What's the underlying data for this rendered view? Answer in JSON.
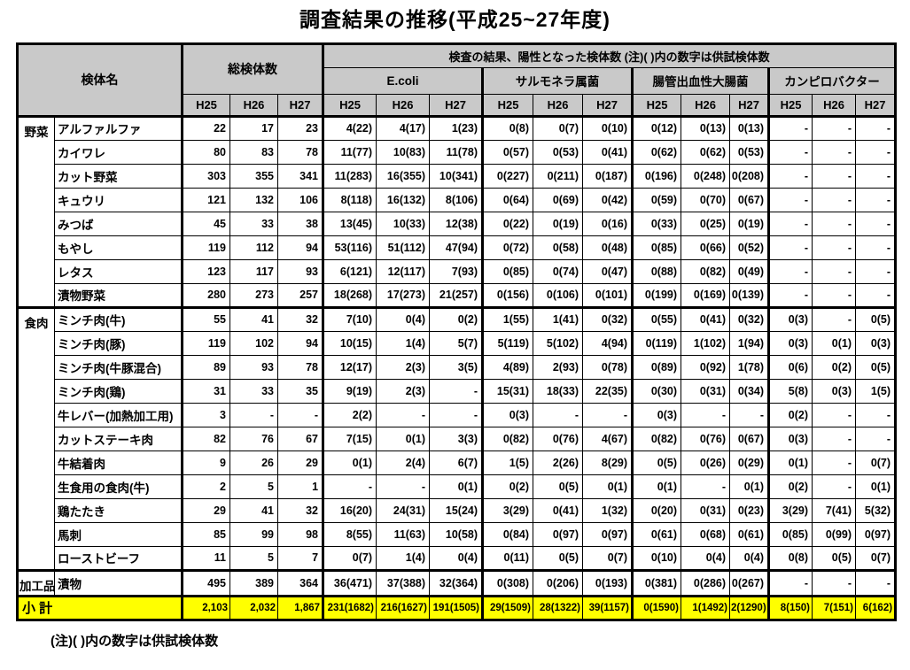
{
  "title": "調査結果の推移(平成25~27年度)",
  "note": "(注)( )内の数字は供試検体数",
  "colors": {
    "header_bg": "#c9c9c9",
    "subtotal_bg": "#ffff00",
    "border": "#000000"
  },
  "table": {
    "header": {
      "specimen_label": "検体名",
      "total_label": "総検体数",
      "positive_label": "検査の結果、陽性となった検体数 (注)( )内の数字は供試検体数",
      "pathogen_groups": [
        "E.coli",
        "サルモネラ属菌",
        "腸管出血性大腸菌",
        "カンピロバクター"
      ],
      "years": [
        "H25",
        "H26",
        "H27"
      ]
    },
    "groups": [
      {
        "name": "野菜",
        "rows": [
          {
            "name": "アルファルファ",
            "values": [
              "22",
              "17",
              "23",
              "4(22)",
              "4(17)",
              "1(23)",
              "0(8)",
              "0(7)",
              "0(10)",
              "0(12)",
              "0(13)",
              "0(13)",
              "-",
              "-",
              "-"
            ]
          },
          {
            "name": "カイワレ",
            "values": [
              "80",
              "83",
              "78",
              "11(77)",
              "10(83)",
              "11(78)",
              "0(57)",
              "0(53)",
              "0(41)",
              "0(62)",
              "0(62)",
              "0(53)",
              "-",
              "-",
              "-"
            ]
          },
          {
            "name": "カット野菜",
            "values": [
              "303",
              "355",
              "341",
              "11(283)",
              "16(355)",
              "10(341)",
              "0(227)",
              "0(211)",
              "0(187)",
              "0(196)",
              "0(248)",
              "0(208)",
              "-",
              "-",
              "-"
            ]
          },
          {
            "name": "キュウリ",
            "values": [
              "121",
              "132",
              "106",
              "8(118)",
              "16(132)",
              "8(106)",
              "0(64)",
              "0(69)",
              "0(42)",
              "0(59)",
              "0(70)",
              "0(67)",
              "-",
              "-",
              "-"
            ]
          },
          {
            "name": "みつば",
            "values": [
              "45",
              "33",
              "38",
              "13(45)",
              "10(33)",
              "12(38)",
              "0(22)",
              "0(19)",
              "0(16)",
              "0(33)",
              "0(25)",
              "0(19)",
              "-",
              "-",
              "-"
            ]
          },
          {
            "name": "もやし",
            "values": [
              "119",
              "112",
              "94",
              "53(116)",
              "51(112)",
              "47(94)",
              "0(72)",
              "0(58)",
              "0(48)",
              "0(85)",
              "0(66)",
              "0(52)",
              "-",
              "-",
              "-"
            ]
          },
          {
            "name": "レタス",
            "values": [
              "123",
              "117",
              "93",
              "6(121)",
              "12(117)",
              "7(93)",
              "0(85)",
              "0(74)",
              "0(47)",
              "0(88)",
              "0(82)",
              "0(49)",
              "-",
              "-",
              "-"
            ]
          },
          {
            "name": "漬物野菜",
            "values": [
              "280",
              "273",
              "257",
              "18(268)",
              "17(273)",
              "21(257)",
              "0(156)",
              "0(106)",
              "0(101)",
              "0(199)",
              "0(169)",
              "0(139)",
              "-",
              "-",
              "-"
            ]
          }
        ]
      },
      {
        "name": "食肉",
        "rows": [
          {
            "name": "ミンチ肉(牛)",
            "values": [
              "55",
              "41",
              "32",
              "7(10)",
              "0(4)",
              "0(2)",
              "1(55)",
              "1(41)",
              "0(32)",
              "0(55)",
              "0(41)",
              "0(32)",
              "0(3)",
              "-",
              "0(5)"
            ]
          },
          {
            "name": "ミンチ肉(豚)",
            "values": [
              "119",
              "102",
              "94",
              "10(15)",
              "1(4)",
              "5(7)",
              "5(119)",
              "5(102)",
              "4(94)",
              "0(119)",
              "1(102)",
              "1(94)",
              "0(3)",
              "0(1)",
              "0(3)"
            ]
          },
          {
            "name": "ミンチ肉(牛豚混合)",
            "values": [
              "89",
              "93",
              "78",
              "12(17)",
              "2(3)",
              "3(5)",
              "4(89)",
              "2(93)",
              "0(78)",
              "0(89)",
              "0(92)",
              "1(78)",
              "0(6)",
              "0(2)",
              "0(5)"
            ]
          },
          {
            "name": "ミンチ肉(鶏)",
            "values": [
              "31",
              "33",
              "35",
              "9(19)",
              "2(3)",
              "-",
              "15(31)",
              "18(33)",
              "22(35)",
              "0(30)",
              "0(31)",
              "0(34)",
              "5(8)",
              "0(3)",
              "1(5)"
            ]
          },
          {
            "name": "牛レバー(加熱加工用)",
            "values": [
              "3",
              "-",
              "-",
              "2(2)",
              "-",
              "-",
              "0(3)",
              "-",
              "-",
              "0(3)",
              "-",
              "-",
              "0(2)",
              "-",
              "-"
            ]
          },
          {
            "name": "カットステーキ肉",
            "values": [
              "82",
              "76",
              "67",
              "7(15)",
              "0(1)",
              "3(3)",
              "0(82)",
              "0(76)",
              "4(67)",
              "0(82)",
              "0(76)",
              "0(67)",
              "0(3)",
              "-",
              "-"
            ]
          },
          {
            "name": "牛結着肉",
            "values": [
              "9",
              "26",
              "29",
              "0(1)",
              "2(4)",
              "6(7)",
              "1(5)",
              "2(26)",
              "8(29)",
              "0(5)",
              "0(26)",
              "0(29)",
              "0(1)",
              "-",
              "0(7)"
            ]
          },
          {
            "name": "生食用の食肉(牛)",
            "values": [
              "2",
              "5",
              "1",
              "-",
              "-",
              "0(1)",
              "0(2)",
              "0(5)",
              "0(1)",
              "0(1)",
              "-",
              "0(1)",
              "0(2)",
              "-",
              "0(1)"
            ]
          },
          {
            "name": "鶏たたき",
            "values": [
              "29",
              "41",
              "32",
              "16(20)",
              "24(31)",
              "15(24)",
              "3(29)",
              "0(41)",
              "1(32)",
              "0(20)",
              "0(31)",
              "0(23)",
              "3(29)",
              "7(41)",
              "5(32)"
            ]
          },
          {
            "name": "馬刺",
            "values": [
              "85",
              "99",
              "98",
              "8(55)",
              "11(63)",
              "10(58)",
              "0(84)",
              "0(97)",
              "0(97)",
              "0(61)",
              "0(68)",
              "0(61)",
              "0(85)",
              "0(99)",
              "0(97)"
            ]
          },
          {
            "name": "ローストビーフ",
            "values": [
              "11",
              "5",
              "7",
              "0(7)",
              "1(4)",
              "0(4)",
              "0(11)",
              "0(5)",
              "0(7)",
              "0(10)",
              "0(4)",
              "0(4)",
              "0(8)",
              "0(5)",
              "0(7)"
            ]
          }
        ]
      },
      {
        "name": "加工品",
        "rows": [
          {
            "name": "漬物",
            "values": [
              "495",
              "389",
              "364",
              "36(471)",
              "37(388)",
              "32(364)",
              "0(308)",
              "0(206)",
              "0(193)",
              "0(381)",
              "0(286)",
              "0(267)",
              "-",
              "-",
              "-"
            ]
          }
        ]
      }
    ],
    "subtotal": {
      "label": "小 計",
      "values": [
        "2,103",
        "2,032",
        "1,867",
        "231(1682)",
        "216(1627)",
        "191(1505)",
        "29(1509)",
        "28(1322)",
        "39(1157)",
        "0(1590)",
        "1(1492)",
        "2(1290)",
        "8(150)",
        "7(151)",
        "6(162)"
      ]
    }
  }
}
